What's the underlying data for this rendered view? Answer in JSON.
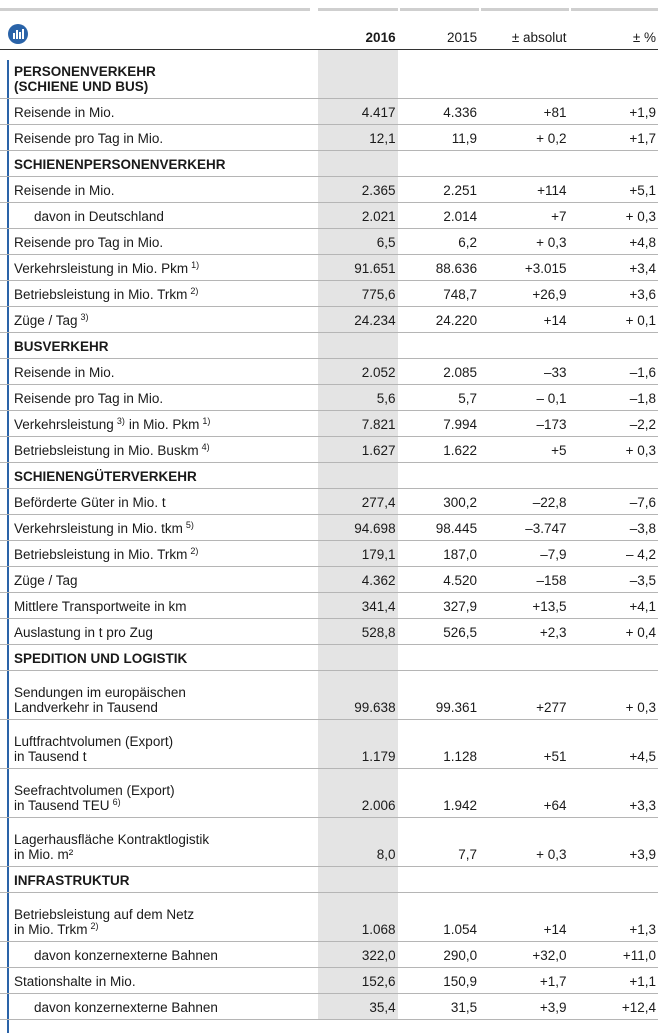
{
  "header": [
    "2016",
    "2015",
    "± absolut",
    "± %"
  ],
  "table": {
    "rows": [
      {
        "section": [
          [
            "PERSONENVERKEHR"
          ],
          [
            "(SCHIENE UND BUS)"
          ]
        ]
      },
      {
        "label": [
          [
            "Reisende in Mio."
          ]
        ],
        "values": [
          "4.417",
          "4.336",
          "+81",
          "+1,9"
        ]
      },
      {
        "label": [
          [
            "Reisende pro Tag in Mio."
          ]
        ],
        "values": [
          "12,1",
          "11,9",
          "+ 0,2",
          "+1,7"
        ]
      },
      {
        "section": [
          [
            "SCHIENENPERSONENVERKEHR"
          ]
        ]
      },
      {
        "label": [
          [
            "Reisende in Mio."
          ]
        ],
        "values": [
          "2.365",
          "2.251",
          "+114",
          "+5,1"
        ]
      },
      {
        "label": [
          [
            "davon in Deutschland"
          ]
        ],
        "indent": true,
        "values": [
          "2.021",
          "2.014",
          "+7",
          "+ 0,3"
        ]
      },
      {
        "label": [
          [
            "Reisende pro Tag in Mio."
          ]
        ],
        "values": [
          "6,5",
          "6,2",
          "+ 0,3",
          "+4,8"
        ]
      },
      {
        "label": [
          [
            "Verkehrsleistung in Mio. Pkm",
            {
              "sup": "1)"
            }
          ]
        ],
        "values": [
          "91.651",
          "88.636",
          "+3.015",
          "+3,4"
        ]
      },
      {
        "label": [
          [
            "Betriebsleistung in Mio. Trkm",
            {
              "sup": "2)"
            }
          ]
        ],
        "values": [
          "775,6",
          "748,7",
          "+26,9",
          "+3,6"
        ]
      },
      {
        "label": [
          [
            "Züge / Tag",
            {
              "sup": "3)"
            }
          ]
        ],
        "values": [
          "24.234",
          "24.220",
          "+14",
          "+ 0,1"
        ]
      },
      {
        "section": [
          [
            "BUSVERKEHR"
          ]
        ]
      },
      {
        "label": [
          [
            "Reisende in Mio."
          ]
        ],
        "values": [
          "2.052",
          "2.085",
          "–33",
          "–1,6"
        ]
      },
      {
        "label": [
          [
            "Reisende pro Tag in Mio."
          ]
        ],
        "values": [
          "5,6",
          "5,7",
          "– 0,1",
          "–1,8"
        ]
      },
      {
        "label": [
          [
            "Verkehrsleistung",
            {
              "sup": "3)"
            },
            "in Mio. Pkm",
            {
              "sup": "1)"
            }
          ]
        ],
        "values": [
          "7.821",
          "7.994",
          "–173",
          "–2,2"
        ]
      },
      {
        "label": [
          [
            "Betriebsleistung in Mio. Buskm",
            {
              "sup": "4)"
            }
          ]
        ],
        "values": [
          "1.627",
          "1.622",
          "+5",
          "+ 0,3"
        ]
      },
      {
        "section": [
          [
            "SCHIENENGÜTERVERKEHR"
          ]
        ]
      },
      {
        "label": [
          [
            "Beförderte Güter in Mio. t"
          ]
        ],
        "values": [
          "277,4",
          "300,2",
          "–22,8",
          "–7,6"
        ]
      },
      {
        "label": [
          [
            "Verkehrsleistung in Mio. tkm",
            {
              "sup": "5)"
            }
          ]
        ],
        "values": [
          "94.698",
          "98.445",
          "–3.747",
          "–3,8"
        ]
      },
      {
        "label": [
          [
            "Betriebsleistung in Mio. Trkm",
            {
              "sup": "2)"
            }
          ]
        ],
        "values": [
          "179,1",
          "187,0",
          "–7,9",
          "– 4,2"
        ]
      },
      {
        "label": [
          [
            "Züge / Tag"
          ]
        ],
        "values": [
          "4.362",
          "4.520",
          "–158",
          "–3,5"
        ]
      },
      {
        "label": [
          [
            "Mittlere Transportweite in km"
          ]
        ],
        "values": [
          "341,4",
          "327,9",
          "+13,5",
          "+4,1"
        ]
      },
      {
        "label": [
          [
            "Auslastung in t pro Zug"
          ]
        ],
        "values": [
          "528,8",
          "526,5",
          "+2,3",
          "+ 0,4"
        ]
      },
      {
        "section": [
          [
            "SPEDITION UND LOGISTIK"
          ]
        ]
      },
      {
        "label": [
          [
            "Sendungen im europäischen"
          ],
          [
            "Landverkehr in Tausend"
          ]
        ],
        "values": [
          "99.638",
          "99.361",
          "+277",
          "+ 0,3"
        ]
      },
      {
        "label": [
          [
            "Luftfrachtvolumen (Export)"
          ],
          [
            "in Tausend t"
          ]
        ],
        "values": [
          "1.179",
          "1.128",
          "+51",
          "+4,5"
        ]
      },
      {
        "label": [
          [
            "Seefrachtvolumen (Export)"
          ],
          [
            "in Tausend TEU",
            {
              "sup": "6)"
            }
          ]
        ],
        "values": [
          "2.006",
          "1.942",
          "+64",
          "+3,3"
        ]
      },
      {
        "label": [
          [
            "Lagerhausfläche Kontraktlogistik"
          ],
          [
            "in Mio. m²"
          ]
        ],
        "values": [
          "8,0",
          "7,7",
          "+ 0,3",
          "+3,9"
        ]
      },
      {
        "section": [
          [
            "INFRASTRUKTUR"
          ]
        ]
      },
      {
        "label": [
          [
            "Betriebsleistung auf dem Netz"
          ],
          [
            "in Mio. Trkm",
            {
              "sup": "2)"
            }
          ]
        ],
        "values": [
          "1.068",
          "1.054",
          "+14",
          "+1,3"
        ]
      },
      {
        "label": [
          [
            "davon konzernexterne Bahnen"
          ]
        ],
        "indent": true,
        "values": [
          "322,0",
          "290,0",
          "+32,0",
          "+11,0"
        ]
      },
      {
        "label": [
          [
            "Stationshalte in Mio."
          ]
        ],
        "values": [
          "152,6",
          "150,9",
          "+1,7",
          "+1,1"
        ]
      },
      {
        "label": [
          [
            "davon konzernexterne Bahnen"
          ]
        ],
        "indent": true,
        "values": [
          "35,4",
          "31,5",
          "+3,9",
          "+12,4"
        ]
      }
    ]
  }
}
